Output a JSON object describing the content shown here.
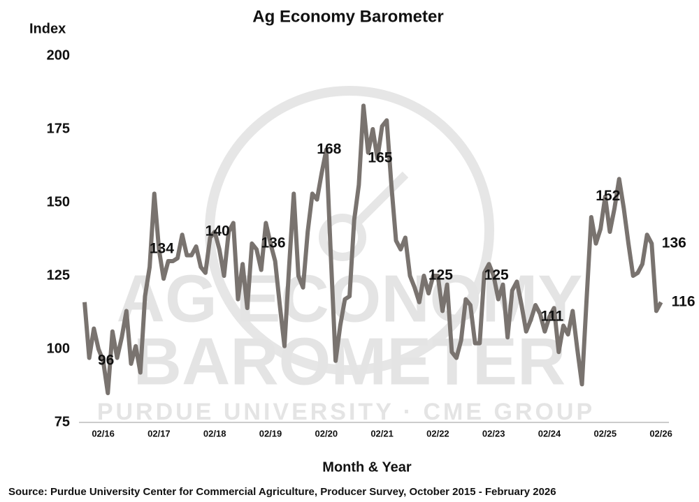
{
  "chart_data": {
    "type": "line",
    "title": "Ag Economy Barometer",
    "y_label": "Index",
    "x_label": "Month & Year",
    "source": "Source: Purdue University Center for Commercial Agriculture, Producer Survey, October 2015 - February 2026",
    "watermark": {
      "line1": "AG ECONOMY",
      "line2": "BAROMETER",
      "line3": "PURDUE UNIVERSITY · CME GROUP"
    },
    "ylim": [
      75,
      200
    ],
    "yticks": [
      75,
      100,
      125,
      150,
      175,
      200
    ],
    "grid": false,
    "categories": [
      null,
      null,
      null,
      null,
      "02/16",
      null,
      null,
      null,
      null,
      null,
      null,
      null,
      null,
      null,
      null,
      null,
      "02/17",
      null,
      null,
      null,
      null,
      null,
      null,
      null,
      null,
      null,
      null,
      null,
      "02/18",
      null,
      null,
      null,
      null,
      null,
      null,
      null,
      null,
      null,
      null,
      null,
      "02/19",
      null,
      null,
      null,
      null,
      null,
      null,
      null,
      null,
      null,
      null,
      null,
      "02/20",
      null,
      null,
      null,
      null,
      null,
      null,
      null,
      null,
      null,
      null,
      null,
      "02/21",
      null,
      null,
      null,
      null,
      null,
      null,
      null,
      null,
      null,
      null,
      null,
      "02/22",
      null,
      null,
      null,
      null,
      null,
      null,
      null,
      null,
      null,
      null,
      null,
      "02/23",
      null,
      null,
      null,
      null,
      null,
      null,
      null,
      null,
      null,
      null,
      null,
      "02/24",
      null,
      null,
      null,
      null,
      null,
      null,
      null,
      null,
      null,
      null,
      null,
      "02/25",
      null,
      null,
      null,
      null,
      null,
      null,
      null,
      null,
      null,
      null,
      null,
      "02/26"
    ],
    "series": [
      {
        "name": "Index",
        "color": "#79736f",
        "values": [
          116,
          97,
          107,
          100,
          96,
          85,
          106,
          97,
          104,
          113,
          95,
          101,
          92,
          118,
          128,
          153,
          134,
          124,
          130,
          130,
          131,
          139,
          132,
          132,
          135,
          128,
          126,
          138,
          140,
          134,
          125,
          140,
          143,
          117,
          129,
          114,
          136,
          134,
          127,
          143,
          136,
          130,
          115,
          101,
          128,
          153,
          125,
          121,
          140,
          153,
          151,
          160,
          168,
          131,
          96,
          108,
          117,
          118,
          144,
          156,
          183,
          167,
          175,
          165,
          176,
          178,
          156,
          137,
          134,
          138,
          125,
          121,
          116,
          125,
          119,
          125,
          125,
          113,
          122,
          99,
          97,
          103,
          117,
          115,
          102,
          102,
          126,
          129,
          125,
          117,
          122,
          104,
          120,
          123,
          115,
          106,
          110,
          115,
          112,
          106,
          111,
          114,
          99,
          108,
          105,
          113,
          100,
          88,
          117,
          145,
          136,
          141,
          152,
          140,
          148,
          158,
          148,
          136,
          125,
          126,
          129,
          139,
          136,
          113,
          116
        ],
        "value_labels": [
          null,
          null,
          null,
          null,
          "96",
          null,
          null,
          null,
          null,
          null,
          null,
          null,
          null,
          null,
          null,
          null,
          "134",
          null,
          null,
          null,
          null,
          null,
          null,
          null,
          null,
          null,
          null,
          null,
          "140",
          null,
          null,
          null,
          null,
          null,
          null,
          null,
          null,
          null,
          null,
          null,
          "136",
          null,
          null,
          null,
          null,
          null,
          null,
          null,
          null,
          null,
          null,
          null,
          "168",
          null,
          null,
          null,
          null,
          null,
          null,
          null,
          null,
          null,
          null,
          "165",
          null,
          null,
          null,
          null,
          null,
          null,
          null,
          null,
          null,
          null,
          null,
          null,
          "125",
          null,
          null,
          null,
          null,
          null,
          null,
          null,
          null,
          null,
          null,
          null,
          "125",
          null,
          null,
          null,
          null,
          null,
          null,
          null,
          null,
          null,
          null,
          null,
          "111",
          null,
          null,
          null,
          null,
          null,
          null,
          null,
          null,
          null,
          null,
          null,
          "152",
          null,
          null,
          null,
          null,
          null,
          null,
          null,
          null,
          null,
          "136",
          null,
          "116"
        ]
      }
    ]
  }
}
